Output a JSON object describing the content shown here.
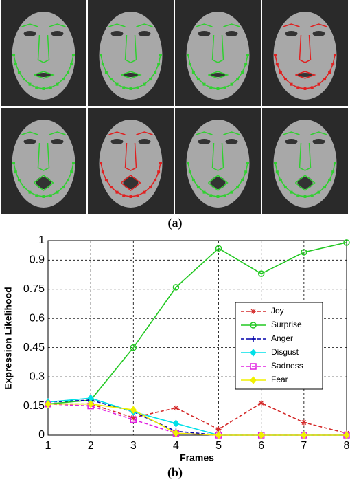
{
  "figure": {
    "panel_a_label": "(a)",
    "panel_b_label": "(b)"
  },
  "chart_data": {
    "type": "line",
    "xlabel": "Frames",
    "ylabel": "Expression Likelihood",
    "x": [
      1,
      2,
      3,
      4,
      5,
      6,
      7,
      8
    ],
    "xlim": [
      1,
      8
    ],
    "xticks": [
      1,
      2,
      3,
      4,
      5,
      6,
      7,
      8
    ],
    "ylim": [
      0,
      1
    ],
    "yticks": [
      0,
      0.15,
      0.3,
      0.45,
      0.6,
      0.75,
      0.9,
      1
    ],
    "grid": true,
    "legend": "right",
    "series": [
      {
        "name": "Joy",
        "color": "#d42a2a",
        "dash": true,
        "marker": "star",
        "values": [
          0.16,
          0.16,
          0.09,
          0.14,
          0.03,
          0.165,
          0.065,
          0.01
        ]
      },
      {
        "name": "Surprise",
        "color": "#22c822",
        "dash": false,
        "marker": "circle",
        "values": [
          0.16,
          0.18,
          0.45,
          0.76,
          0.96,
          0.83,
          0.94,
          0.99
        ]
      },
      {
        "name": "Anger",
        "color": "#0000aa",
        "dash": true,
        "marker": "plus",
        "values": [
          0.17,
          0.18,
          0.12,
          0.02,
          0,
          0,
          0,
          0
        ]
      },
      {
        "name": "Disgust",
        "color": "#00e0e8",
        "dash": false,
        "marker": "diamond",
        "values": [
          0.17,
          0.19,
          0.12,
          0.06,
          0,
          0,
          0,
          0
        ]
      },
      {
        "name": "Sadness",
        "color": "#e020e0",
        "dash": true,
        "marker": "square",
        "values": [
          0.16,
          0.15,
          0.08,
          0.01,
          0,
          0,
          0,
          0
        ]
      },
      {
        "name": "Fear",
        "color": "#f0f000",
        "dash": false,
        "marker": "diamond",
        "values": [
          0.16,
          0.16,
          0.13,
          0.01,
          0,
          0,
          0,
          0
        ]
      }
    ]
  }
}
